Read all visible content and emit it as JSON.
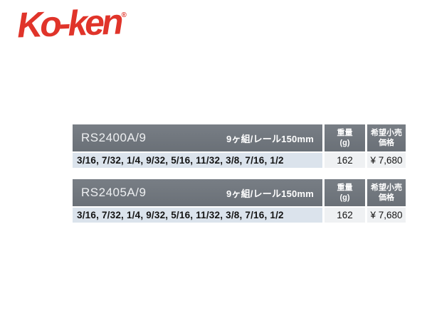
{
  "brand": {
    "logo_text": "Ko-ken",
    "registered_mark": "®",
    "logo_color": "#e0342a"
  },
  "colors": {
    "table_header_bg": "#6e747b",
    "table_header_text": "#ffffff",
    "sizes_row_bg": "#dbe3ec",
    "value_cell_bg": "#eff1f3"
  },
  "tables": [
    {
      "model": "RS2400A/9",
      "spec": "9ヶ組/レール150mm",
      "columns": {
        "weight_line1": "重量",
        "weight_line2": "(g)",
        "price_line1": "希望小売",
        "price_line2": "価格"
      },
      "sizes": "3/16, 7/32, 1/4, 9/32, 5/16, 11/32, 3/8, 7/16, 1/2",
      "weight_g": "162",
      "price": "¥ 7,680"
    },
    {
      "model": "RS2405A/9",
      "spec": "9ヶ組/レール150mm",
      "columns": {
        "weight_line1": "重量",
        "weight_line2": "(g)",
        "price_line1": "希望小売",
        "price_line2": "価格"
      },
      "sizes": "3/16, 7/32, 1/4, 9/32, 5/16, 11/32, 3/8, 7/16, 1/2",
      "weight_g": "162",
      "price": "¥ 7,680"
    }
  ]
}
